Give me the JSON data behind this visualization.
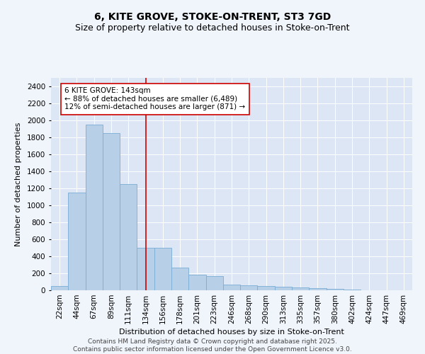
{
  "title_line1": "6, KITE GROVE, STOKE-ON-TRENT, ST3 7GD",
  "title_line2": "Size of property relative to detached houses in Stoke-on-Trent",
  "xlabel": "Distribution of detached houses by size in Stoke-on-Trent",
  "ylabel": "Number of detached properties",
  "categories": [
    "22sqm",
    "44sqm",
    "67sqm",
    "89sqm",
    "111sqm",
    "134sqm",
    "156sqm",
    "178sqm",
    "201sqm",
    "223sqm",
    "246sqm",
    "268sqm",
    "290sqm",
    "313sqm",
    "335sqm",
    "357sqm",
    "380sqm",
    "402sqm",
    "424sqm",
    "447sqm",
    "469sqm"
  ],
  "values": [
    50,
    1150,
    1950,
    1850,
    1250,
    500,
    500,
    270,
    180,
    170,
    70,
    55,
    50,
    40,
    30,
    25,
    15,
    8,
    4,
    2,
    1
  ],
  "bar_color": "#b8cfe8",
  "bar_edge_color": "#7aadd4",
  "vline_x": 5,
  "vline_color": "#cc0000",
  "annotation_text": "6 KITE GROVE: 143sqm\n← 88% of detached houses are smaller (6,489)\n12% of semi-detached houses are larger (871) →",
  "annotation_box_facecolor": "#ffffff",
  "annotation_box_edgecolor": "#cc0000",
  "ylim": [
    0,
    2500
  ],
  "yticks": [
    0,
    200,
    400,
    600,
    800,
    1000,
    1200,
    1400,
    1600,
    1800,
    2000,
    2200,
    2400
  ],
  "bg_color": "#dce6f5",
  "fig_facecolor": "#f0f4fb",
  "footer_line1": "Contains HM Land Registry data © Crown copyright and database right 2025.",
  "footer_line2": "Contains public sector information licensed under the Open Government Licence v3.0.",
  "title_fontsize": 10,
  "subtitle_fontsize": 9,
  "axis_label_fontsize": 8,
  "tick_fontsize": 7.5,
  "annotation_fontsize": 7.5,
  "footer_fontsize": 6.5
}
